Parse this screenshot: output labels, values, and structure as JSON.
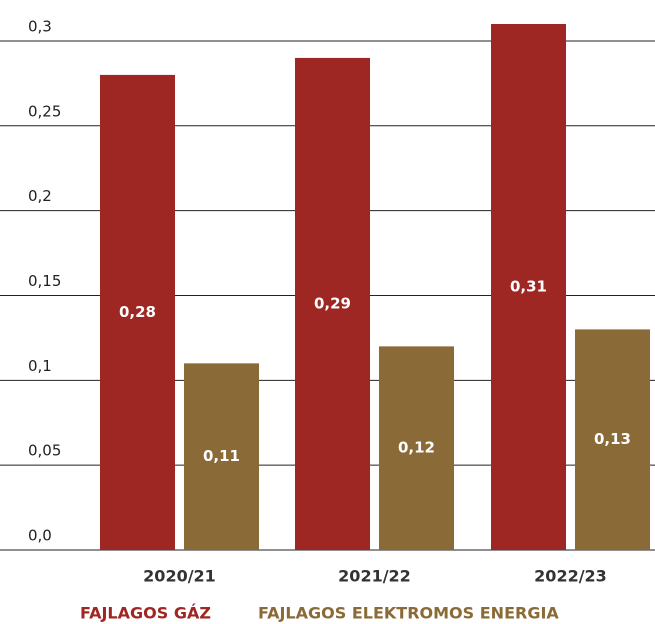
{
  "chart_data": {
    "type": "bar",
    "categories": [
      "2020/21",
      "2021/22",
      "2022/23"
    ],
    "series": [
      {
        "name": "FAJLAGOS GÁZ",
        "color": "#9e2723",
        "values": [
          0.28,
          0.29,
          0.31
        ],
        "value_labels": [
          "0,28",
          "0,29",
          "0,31"
        ]
      },
      {
        "name": "FAJLAGOS ELEKTROMOS ENERGIA",
        "color": "#8a6a37",
        "values": [
          0.11,
          0.12,
          0.13
        ],
        "value_labels": [
          "0,11",
          "0,12",
          "0,13"
        ]
      }
    ],
    "ylim": [
      0,
      0.31
    ],
    "yticks": [
      {
        "value": 0,
        "label": "0,0"
      },
      {
        "value": 0.05,
        "label": "0,05"
      },
      {
        "value": 0.1,
        "label": "0,1"
      },
      {
        "value": 0.15,
        "label": "0,15"
      },
      {
        "value": 0.2,
        "label": "0,2"
      },
      {
        "value": 0.25,
        "label": "0,25"
      },
      {
        "value": 0.3,
        "label": "0,3"
      }
    ],
    "grid": true
  }
}
